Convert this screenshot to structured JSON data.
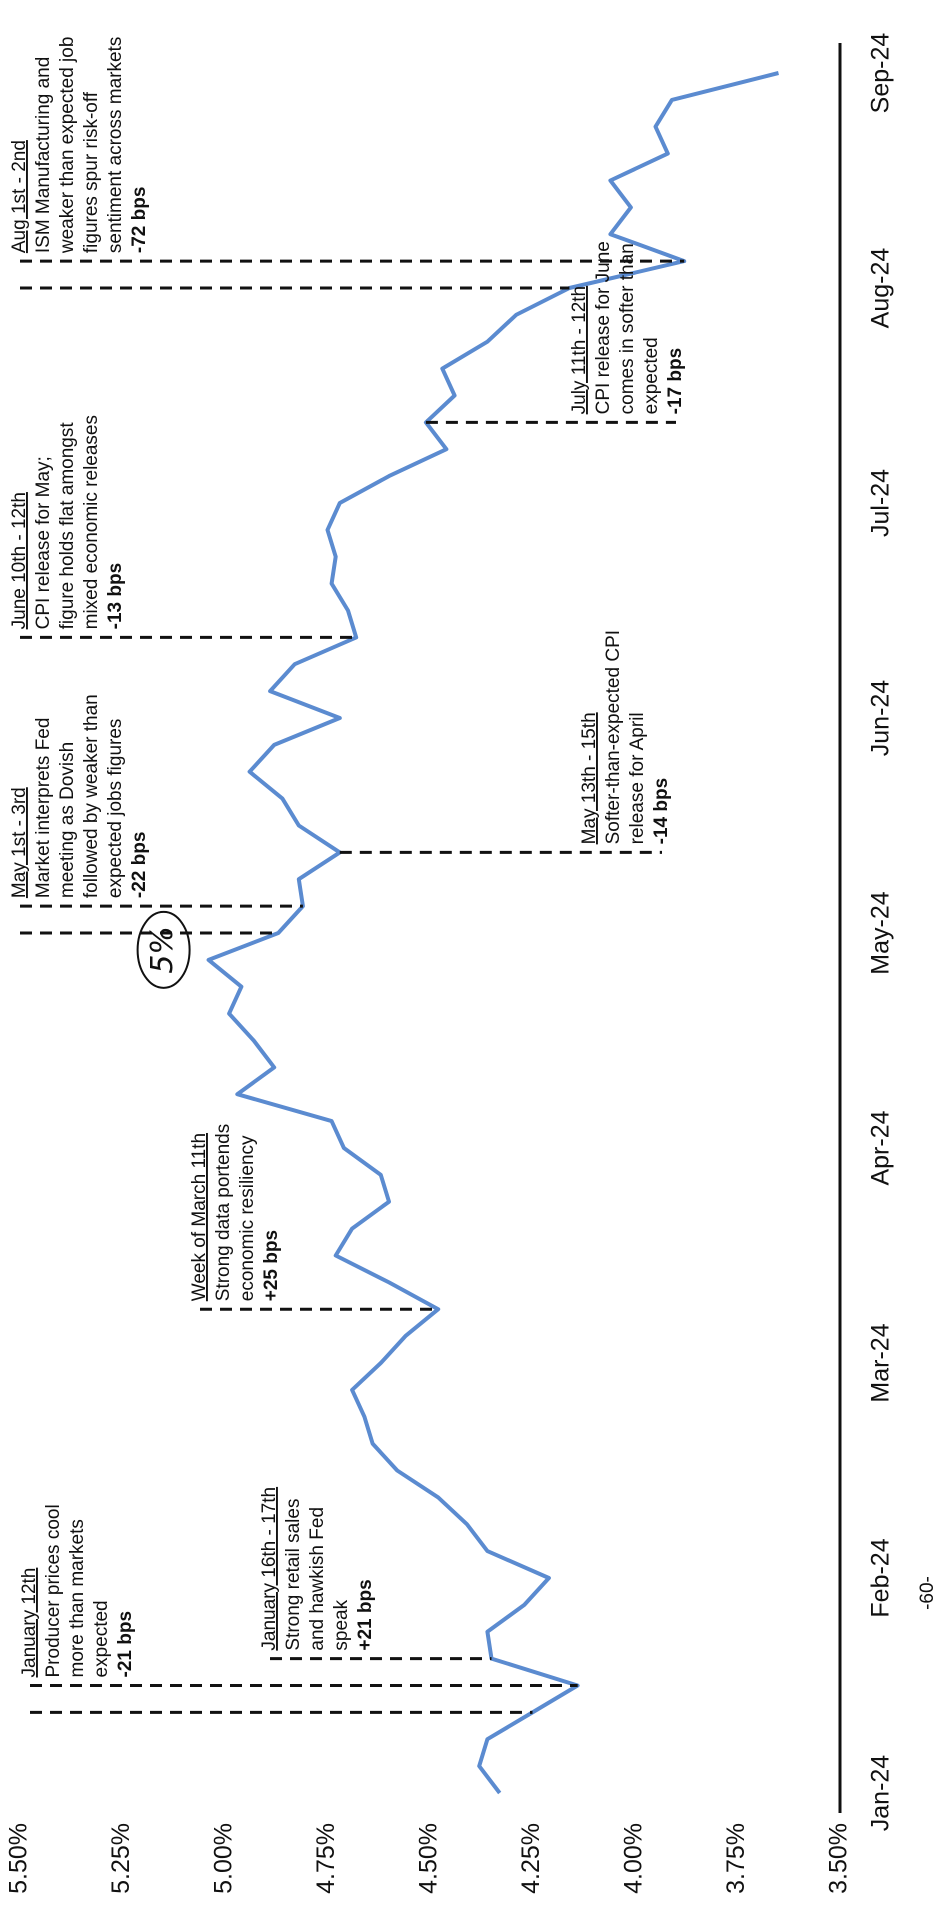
{
  "chart_data": {
    "type": "line",
    "color": "#5b8bd0",
    "ylim": [
      3.5,
      5.5
    ],
    "yticks": [
      {
        "value": 5.5,
        "label": "5.50%"
      },
      {
        "value": 5.25,
        "label": "5.25%"
      },
      {
        "value": 5.0,
        "label": "5.00%"
      },
      {
        "value": 4.75,
        "label": "4.75%"
      },
      {
        "value": 4.5,
        "label": "4.50%"
      },
      {
        "value": 4.25,
        "label": "4.25%"
      },
      {
        "value": 4.0,
        "label": "4.00%"
      },
      {
        "value": 3.75,
        "label": "3.75%"
      },
      {
        "value": 3.5,
        "label": "3.50%"
      }
    ],
    "categories": [
      "Jan-24",
      null,
      null,
      null,
      null,
      null,
      null,
      null,
      "Feb-24",
      null,
      null,
      null,
      null,
      null,
      null,
      null,
      "Mar-24",
      null,
      null,
      null,
      null,
      null,
      null,
      null,
      "Apr-24",
      null,
      null,
      null,
      null,
      null,
      null,
      null,
      "May-24",
      null,
      null,
      null,
      null,
      null,
      null,
      null,
      "Jun-24",
      null,
      null,
      null,
      null,
      null,
      null,
      null,
      "Jul-24",
      null,
      null,
      null,
      null,
      null,
      null,
      null,
      "Aug-24",
      null,
      null,
      null,
      null,
      null,
      null,
      null,
      "Sep-24"
    ],
    "values": [
      4.33,
      4.38,
      4.36,
      4.25,
      4.14,
      4.35,
      4.36,
      4.27,
      4.21,
      4.36,
      4.41,
      4.48,
      4.58,
      4.64,
      4.66,
      4.69,
      4.62,
      4.56,
      4.48,
      4.6,
      4.73,
      4.69,
      4.6,
      4.62,
      4.71,
      4.74,
      4.97,
      4.88,
      4.93,
      4.99,
      4.96,
      5.04,
      4.87,
      4.81,
      4.82,
      4.72,
      4.82,
      4.86,
      4.94,
      4.88,
      4.72,
      4.89,
      4.83,
      4.68,
      4.7,
      4.74,
      4.73,
      4.75,
      4.72,
      4.6,
      4.46,
      4.51,
      4.44,
      4.47,
      4.36,
      4.29,
      4.16,
      3.88,
      4.06,
      4.01,
      4.06,
      3.92,
      3.95,
      3.91,
      3.65
    ],
    "annotations": [
      {
        "title": "January 12th",
        "text": [
          "Producer prices cool",
          "more than markets",
          "expected"
        ],
        "change": "-21 bps"
      },
      {
        "title": "January 16th - 17th",
        "text": [
          "Strong retail sales",
          "and hawkish Fed",
          "speak"
        ],
        "change": "+21 bps"
      },
      {
        "title": "Week of March 11th",
        "text": [
          "Strong data portends",
          "economic resiliency"
        ],
        "change": "+25 bps"
      },
      {
        "title": "May 1st - 3rd",
        "text": [
          "Market interprets Fed",
          "meeting as Dovish",
          "followed by weaker than",
          "expected jobs figures"
        ],
        "change": "-22 bps"
      },
      {
        "title": "May 13th - 15th",
        "text": [
          "Softer-than-expected CPI",
          "release for April"
        ],
        "change": "-14 bps"
      },
      {
        "title": "June 10th - 12th",
        "text": [
          "CPI release for May;",
          "figure holds flat amongst",
          "mixed economic releases"
        ],
        "change": "-13 bps"
      },
      {
        "title": "July 11th - 12th",
        "text": [
          "CPI release for June",
          "comes in softer than",
          "expected"
        ],
        "change": "-17 bps"
      },
      {
        "title": "Aug 1st - 2nd",
        "text": [
          "ISM Manufacturing and",
          "weaker than expected job",
          "figures spur risk-off",
          "sentiment across markets"
        ],
        "change": "-72 bps"
      }
    ],
    "handwritten_note": "5%",
    "page_number": "-60-"
  }
}
